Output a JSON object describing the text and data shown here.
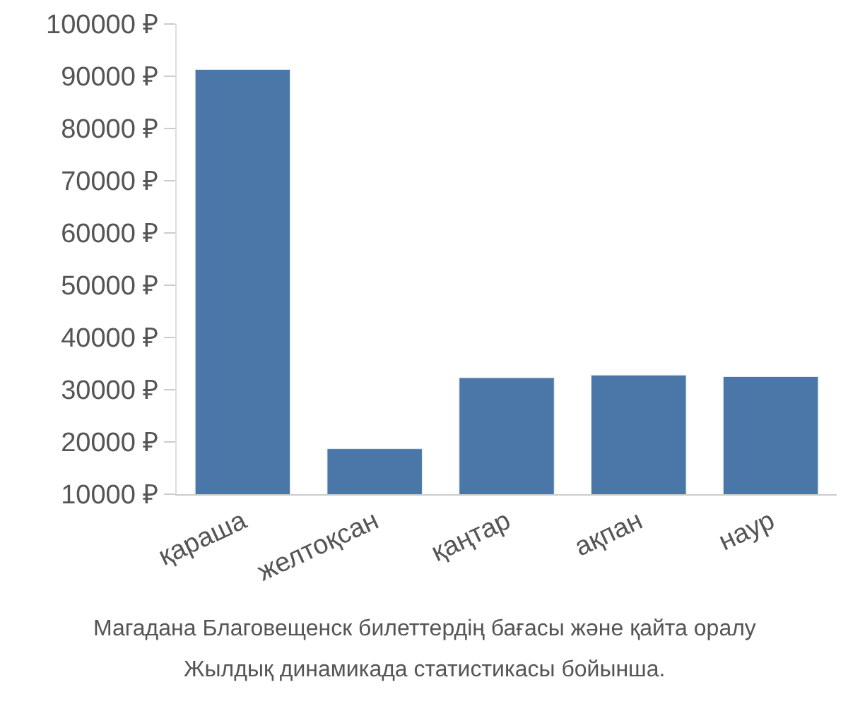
{
  "chart_data": {
    "type": "bar",
    "categories": [
      "қараша",
      "желтоқсан",
      "қаңтар",
      "ақпан",
      "наур"
    ],
    "values": [
      91300,
      18700,
      32300,
      32800,
      32500
    ],
    "color": "#4a76a8",
    "ylim": [
      10000,
      100000
    ],
    "yticks": [
      {
        "value": 10000,
        "label": "10000 ₽"
      },
      {
        "value": 20000,
        "label": "20000 ₽"
      },
      {
        "value": 30000,
        "label": "30000 ₽"
      },
      {
        "value": 40000,
        "label": "40000 ₽"
      },
      {
        "value": 50000,
        "label": "50000 ₽"
      },
      {
        "value": 60000,
        "label": "60000 ₽"
      },
      {
        "value": 70000,
        "label": "70000 ₽"
      },
      {
        "value": 80000,
        "label": "80000 ₽"
      },
      {
        "value": 90000,
        "label": "90000 ₽"
      },
      {
        "value": 100000,
        "label": "100000 ₽"
      }
    ],
    "annotations": [
      "Магадана Благовещенск билеттердің бағасы және қайта оралу",
      "Жылдық динамикада статистикасы бойынша."
    ]
  }
}
